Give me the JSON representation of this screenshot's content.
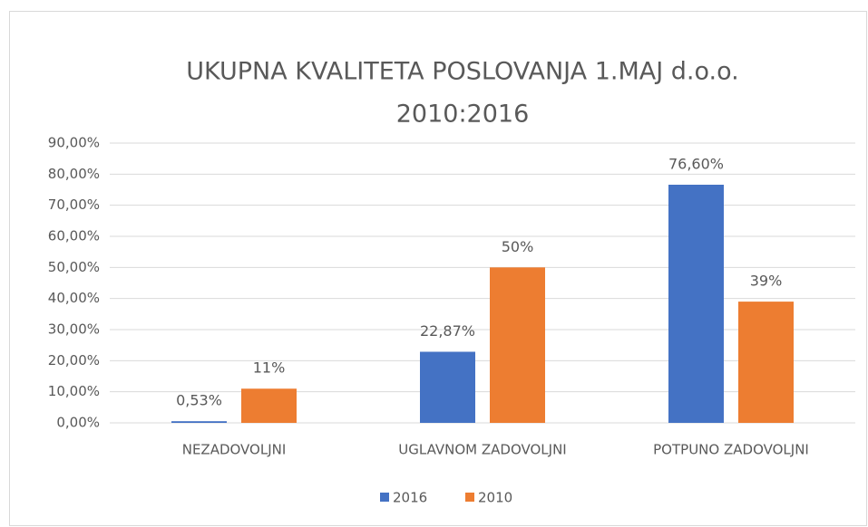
{
  "chart_data": {
    "type": "bar",
    "title": [
      "UKUPNA KVALITETA POSLOVANJA 1.MAJ d.o.o.",
      "2010:2016"
    ],
    "categories": [
      "NEZADOVOLJNI",
      "UGLAVNOM ZADOVOLJNI",
      "POTPUNO ZADOVOLJNI"
    ],
    "series": [
      {
        "name": "2016",
        "color": "#4472c4",
        "values": [
          0.53,
          22.87,
          76.6
        ],
        "value_labels": [
          "0,53%",
          "22,87%",
          "76,60%"
        ]
      },
      {
        "name": "2010",
        "color": "#ed7d31",
        "values": [
          11,
          50,
          39
        ],
        "value_labels": [
          "11%",
          "50%",
          "39%"
        ]
      }
    ],
    "ylim": [
      0,
      90
    ],
    "yticks": [
      {
        "value": 0,
        "label": "0,00%"
      },
      {
        "value": 10,
        "label": "10,00%"
      },
      {
        "value": 20,
        "label": "20,00%"
      },
      {
        "value": 30,
        "label": "30,00%"
      },
      {
        "value": 40,
        "label": "40,00%"
      },
      {
        "value": 50,
        "label": "50,00%"
      },
      {
        "value": 60,
        "label": "60,00%"
      },
      {
        "value": 70,
        "label": "70,00%"
      },
      {
        "value": 80,
        "label": "80,00%"
      },
      {
        "value": 90,
        "label": "90,00%"
      }
    ],
    "grid": true,
    "legend": "bottom"
  }
}
